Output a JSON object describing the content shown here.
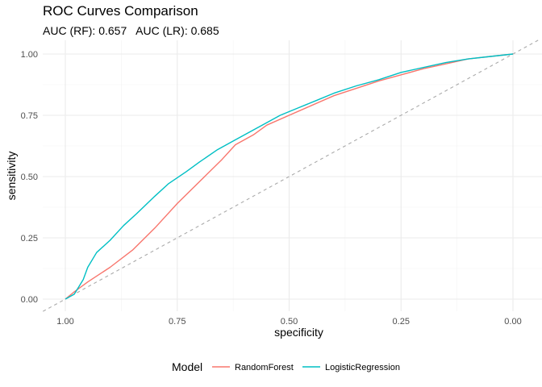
{
  "chart_data": {
    "type": "line",
    "title": "ROC Curves Comparison",
    "subtitle": "AUC (RF): 0.657   AUC (LR): 0.685",
    "xlabel": "specificity",
    "ylabel": "sensitivity",
    "x_reversed": true,
    "xlim": [
      1.0,
      0.0
    ],
    "ylim": [
      0.0,
      1.0
    ],
    "x_ticks": [
      "1.00",
      "0.75",
      "0.50",
      "0.25",
      "0.00"
    ],
    "y_ticks": [
      "0.00",
      "0.25",
      "0.50",
      "0.75",
      "1.00"
    ],
    "grid": true,
    "reference_line": {
      "from": [
        1.0,
        0.0
      ],
      "to": [
        0.0,
        1.0
      ],
      "style": "dashed",
      "color": "#aaaaaa"
    },
    "legend": {
      "title": "Model",
      "position": "bottom"
    },
    "series": [
      {
        "name": "RandomForest",
        "color": "#F8766D",
        "points": [
          [
            1.0,
            0.0
          ],
          [
            0.98,
            0.03
          ],
          [
            0.95,
            0.07
          ],
          [
            0.9,
            0.13
          ],
          [
            0.85,
            0.2
          ],
          [
            0.8,
            0.29
          ],
          [
            0.75,
            0.39
          ],
          [
            0.7,
            0.48
          ],
          [
            0.65,
            0.57
          ],
          [
            0.62,
            0.63
          ],
          [
            0.58,
            0.67
          ],
          [
            0.55,
            0.71
          ],
          [
            0.5,
            0.75
          ],
          [
            0.45,
            0.79
          ],
          [
            0.4,
            0.83
          ],
          [
            0.35,
            0.86
          ],
          [
            0.3,
            0.89
          ],
          [
            0.25,
            0.915
          ],
          [
            0.2,
            0.94
          ],
          [
            0.15,
            0.96
          ],
          [
            0.1,
            0.98
          ],
          [
            0.05,
            0.99
          ],
          [
            0.0,
            1.0
          ]
        ]
      },
      {
        "name": "LogisticRegression",
        "color": "#00BFC4",
        "points": [
          [
            1.0,
            0.0
          ],
          [
            0.98,
            0.02
          ],
          [
            0.96,
            0.08
          ],
          [
            0.95,
            0.13
          ],
          [
            0.93,
            0.19
          ],
          [
            0.9,
            0.24
          ],
          [
            0.87,
            0.3
          ],
          [
            0.84,
            0.35
          ],
          [
            0.8,
            0.42
          ],
          [
            0.77,
            0.47
          ],
          [
            0.73,
            0.52
          ],
          [
            0.7,
            0.56
          ],
          [
            0.66,
            0.61
          ],
          [
            0.62,
            0.65
          ],
          [
            0.58,
            0.69
          ],
          [
            0.55,
            0.72
          ],
          [
            0.52,
            0.75
          ],
          [
            0.48,
            0.78
          ],
          [
            0.44,
            0.81
          ],
          [
            0.4,
            0.84
          ],
          [
            0.35,
            0.87
          ],
          [
            0.3,
            0.895
          ],
          [
            0.25,
            0.925
          ],
          [
            0.2,
            0.945
          ],
          [
            0.15,
            0.965
          ],
          [
            0.1,
            0.98
          ],
          [
            0.05,
            0.99
          ],
          [
            0.0,
            1.0
          ]
        ]
      }
    ]
  }
}
